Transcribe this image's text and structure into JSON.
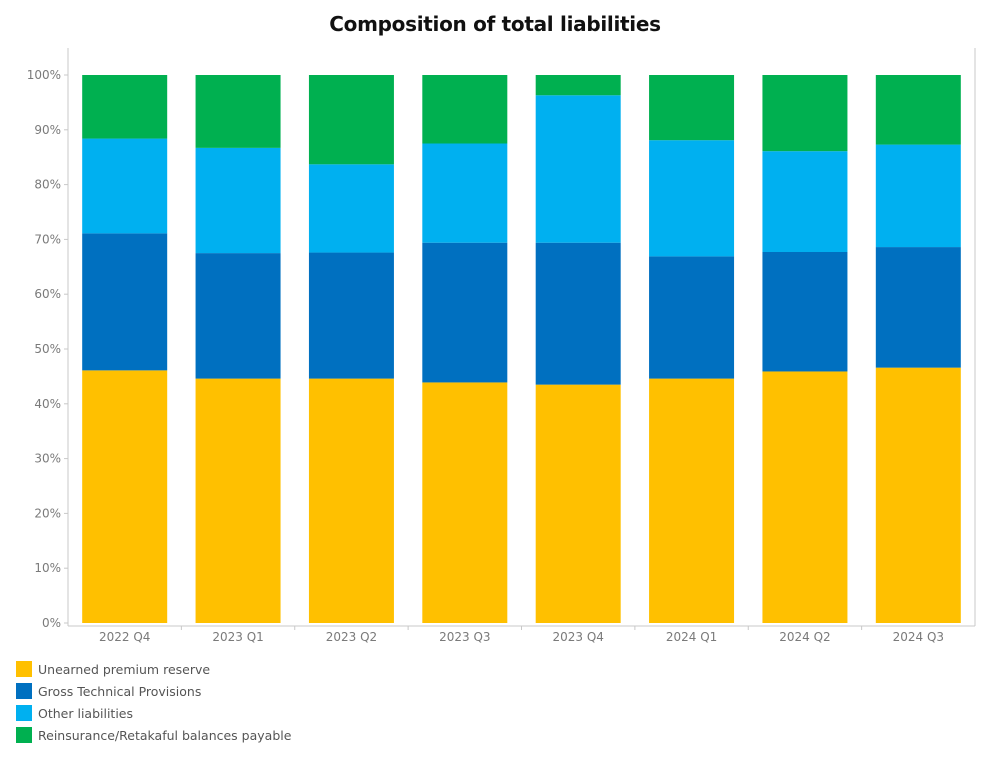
{
  "chart_data": {
    "type": "bar",
    "stacked": true,
    "normalized": true,
    "title": "Composition of total liabilities",
    "xlabel": "",
    "ylabel": "",
    "ylim": [
      0,
      100
    ],
    "yticks": [
      "0%",
      "10%",
      "20%",
      "30%",
      "40%",
      "50%",
      "60%",
      "70%",
      "80%",
      "90%",
      "100%"
    ],
    "grid": false,
    "legend_position": "bottom-left",
    "categories": [
      "2022 Q4",
      "2023 Q1",
      "2023 Q2",
      "2023 Q3",
      "2023 Q4",
      "2024 Q1",
      "2024 Q2",
      "2024 Q3"
    ],
    "series": [
      {
        "name": "Unearned premium reserve",
        "color": "#FFC000",
        "values": [
          46.1,
          44.6,
          44.6,
          43.9,
          43.5,
          44.6,
          45.9,
          46.6
        ]
      },
      {
        "name": "Gross Technical Provisions",
        "color": "#0070C0",
        "values": [
          25.0,
          22.9,
          23.0,
          25.5,
          25.9,
          22.3,
          21.8,
          22.0
        ]
      },
      {
        "name": "Other liabilities",
        "color": "#00B0F0",
        "values": [
          17.3,
          19.2,
          16.1,
          18.1,
          26.9,
          21.2,
          18.4,
          18.7
        ]
      },
      {
        "name": "Reinsurance/Retakaful balances payable",
        "color": "#00B050",
        "values": [
          11.6,
          13.3,
          16.3,
          12.5,
          3.7,
          11.9,
          13.9,
          12.7
        ]
      }
    ]
  }
}
